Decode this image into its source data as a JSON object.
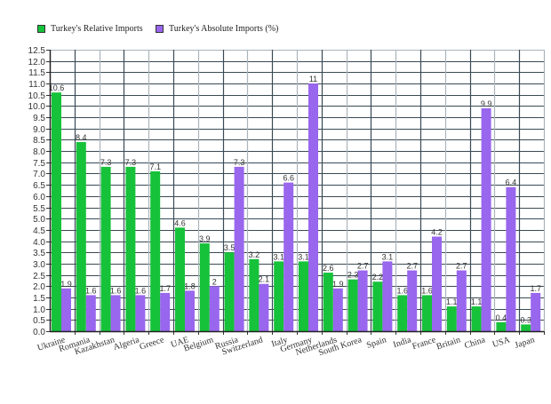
{
  "legend": {
    "items": [
      {
        "label": "Turkey's Relative Imports",
        "color": "#16c23a"
      },
      {
        "label": "Turkey's Absolute Imports (%)",
        "color": "#9966ee"
      }
    ]
  },
  "chart_data": {
    "type": "bar",
    "title": "",
    "xlabel": "",
    "ylabel": "",
    "ylim": [
      0,
      12.5
    ],
    "ytick_step": 0.5,
    "grid": true,
    "legend_position": "top",
    "categories": [
      "Ukraine",
      "Romania",
      "Kazakhstan",
      "Algeria",
      "Greece",
      "UAE",
      "Belgium",
      "Russia",
      "Switzerland",
      "Italy",
      "Germany",
      "Netherlands",
      "South Korea",
      "Spain",
      "India",
      "France",
      "Britain",
      "China",
      "USA",
      "Japan"
    ],
    "series": [
      {
        "name": "Turkey's Relative Imports",
        "color": "#16c23a",
        "values": [
          10.6,
          8.4,
          7.3,
          7.3,
          7.1,
          4.6,
          3.9,
          3.5,
          3.2,
          3.1,
          3.1,
          2.6,
          2.3,
          2.2,
          1.6,
          1.6,
          1.1,
          1.1,
          0.4,
          0.3
        ]
      },
      {
        "name": "Turkey's Absolute Imports (%)",
        "color": "#9966ee",
        "values": [
          1.9,
          1.6,
          1.6,
          1.6,
          1.7,
          1.8,
          2,
          7.3,
          2.1,
          6.6,
          11,
          1.9,
          2.7,
          3.1,
          2.7,
          4.2,
          2.7,
          9.9,
          6.4,
          1.7
        ]
      }
    ]
  }
}
